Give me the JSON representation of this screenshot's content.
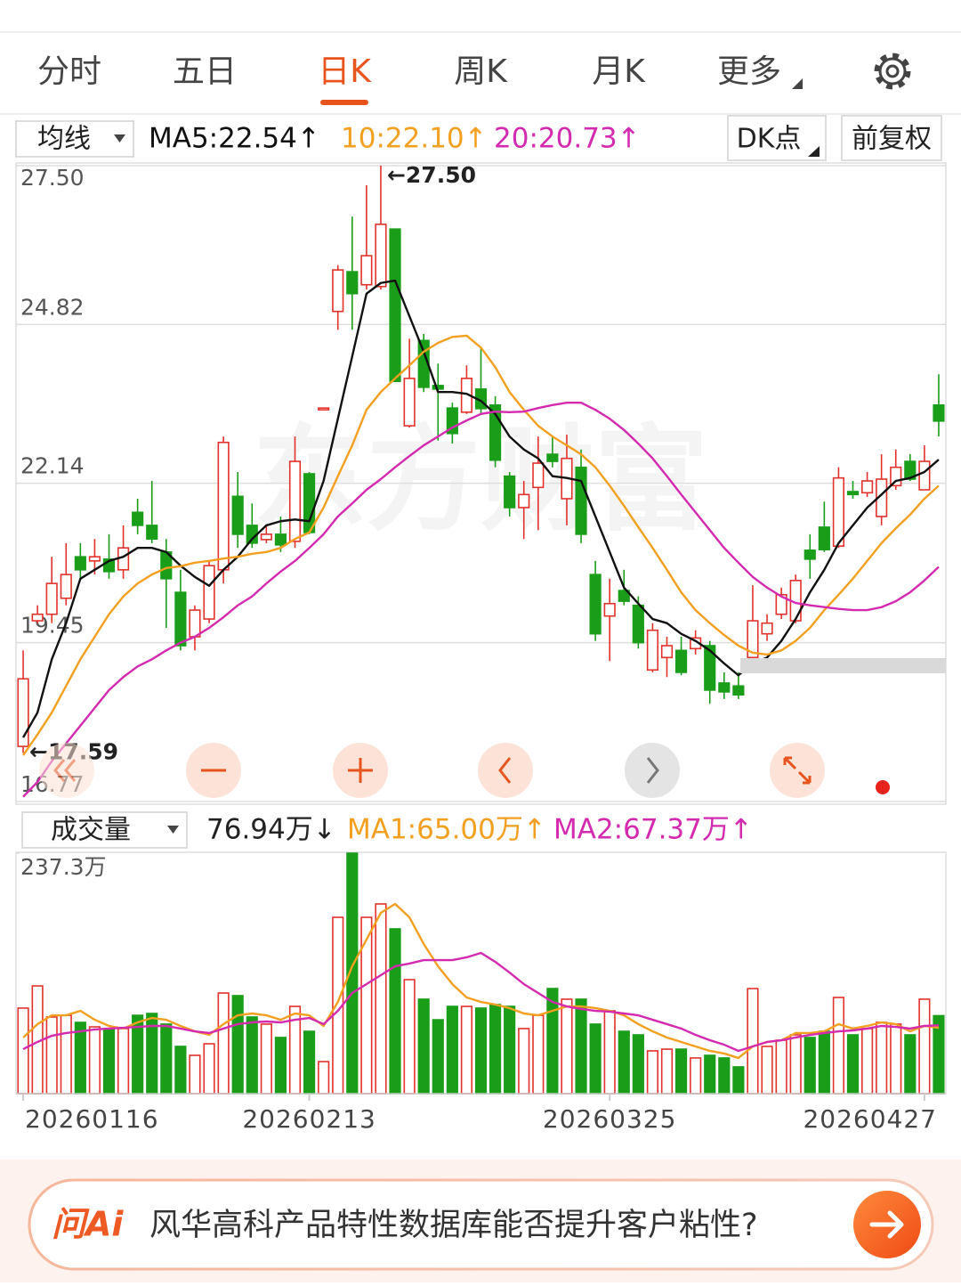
{
  "tabs": [
    "分时",
    "五日",
    "日K",
    "周K",
    "月K",
    "更多"
  ],
  "active_tab": 2,
  "buttons": [
    "DK点",
    "前复权"
  ],
  "watermark": "东方财富",
  "chart_data": [
    {
      "type": "candlestick",
      "menu": "均线",
      "ylim": [
        16.77,
        27.5
      ],
      "yticks": [
        16.77,
        19.45,
        22.14,
        24.82,
        {
          "value": 27.5,
          "label": "27.50"
        }
      ],
      "grid": true,
      "up_color": "#e2322b",
      "down_color": "#1a9e1a",
      "open": [
        17.7,
        19.82,
        19.93,
        20.2,
        20.9,
        20.83,
        20.86,
        20.68,
        21.65,
        21.43,
        20.98,
        20.3,
        19.55,
        19.85,
        20.68,
        21.92,
        21.43,
        21.19,
        21.28,
        21.16,
        22.3,
        23.38,
        25.04,
        25.71,
        25.49,
        25.46,
        26.43,
        23.11,
        24.55,
        23.79,
        23.41,
        23.34,
        23.73,
        23.46,
        22.26,
        21.73,
        22.07,
        22.63,
        21.88,
        22.41,
        20.6,
        19.9,
        20.33,
        20.08,
        18.99,
        19.2,
        19.32,
        19.35,
        19.4,
        18.77,
        18.72,
        19.2,
        19.6,
        19.93,
        19.82,
        21.01,
        21.4,
        21.08,
        22.0,
        21.98,
        21.58,
        22.1,
        22.51,
        22.03,
        23.46
      ],
      "high": [
        19.32,
        20.08,
        20.9,
        21.13,
        21.13,
        21.2,
        21.28,
        21.43,
        21.88,
        22.18,
        21.2,
        20.68,
        20.08,
        20.83,
        22.93,
        22.33,
        21.8,
        21.43,
        21.58,
        22.93,
        22.33,
        23.41,
        25.82,
        26.64,
        27.17,
        27.5,
        26.43,
        24.58,
        24.66,
        24.16,
        23.5,
        24.13,
        24.43,
        23.61,
        22.33,
        22.18,
        22.93,
        22.93,
        22.96,
        22.71,
        20.83,
        20.53,
        20.68,
        20.23,
        19.78,
        19.55,
        19.55,
        19.66,
        19.48,
        18.95,
        18.95,
        20.42,
        19.93,
        20.38,
        20.6,
        21.28,
        21.83,
        22.41,
        22.18,
        22.33,
        22.63,
        22.71,
        22.63,
        22.78,
        23.98
      ],
      "low": [
        17.59,
        19.78,
        19.78,
        20.08,
        20.53,
        20.6,
        20.53,
        20.53,
        21.28,
        21.13,
        19.7,
        19.32,
        19.32,
        19.78,
        20.45,
        21.05,
        21.05,
        21.13,
        20.98,
        21.05,
        21.28,
        23.38,
        24.73,
        24.73,
        25.41,
        25.41,
        23.86,
        23.08,
        23.68,
        22.86,
        22.81,
        23.31,
        23.31,
        22.41,
        21.58,
        21.2,
        21.35,
        22.41,
        21.43,
        21.13,
        19.48,
        19.14,
        20.08,
        19.35,
        18.95,
        18.87,
        18.9,
        19.25,
        18.42,
        18.5,
        18.5,
        19.14,
        19.48,
        19.85,
        19.78,
        20.53,
        20.98,
        21.05,
        21.88,
        21.91,
        21.43,
        22.03,
        22.18,
        22.03,
        22.93
      ],
      "close": [
        18.84,
        19.93,
        20.45,
        20.6,
        20.68,
        20.9,
        20.65,
        21.05,
        21.43,
        21.2,
        20.53,
        19.4,
        20.0,
        20.75,
        22.83,
        21.28,
        21.13,
        21.28,
        21.1,
        22.51,
        21.31,
        23.41,
        25.74,
        25.34,
        25.98,
        26.51,
        23.86,
        23.91,
        23.76,
        23.73,
        22.98,
        23.91,
        23.4,
        22.53,
        21.73,
        21.95,
        22.48,
        22.51,
        22.56,
        21.28,
        19.6,
        20.11,
        20.15,
        19.45,
        19.66,
        19.4,
        18.95,
        19.53,
        18.65,
        18.62,
        18.57,
        19.82,
        19.78,
        20.26,
        20.5,
        20.86,
        21.02,
        22.23,
        21.95,
        22.18,
        22.21,
        22.41,
        22.21,
        22.51,
        23.19
      ],
      "series": [
        {
          "name": "MA5:22.54↑",
          "color": "#111111",
          "values": [
            17.85,
            18.27,
            19.17,
            19.78,
            20.53,
            20.68,
            20.83,
            20.9,
            21.05,
            21.05,
            20.98,
            20.75,
            20.56,
            20.41,
            20.68,
            20.9,
            21.2,
            21.43,
            21.5,
            21.53,
            21.5,
            22.18,
            23.23,
            24.28,
            25.34,
            25.52,
            25.56,
            24.96,
            24.36,
            23.68,
            23.68,
            23.65,
            23.53,
            23.31,
            22.93,
            22.71,
            22.56,
            22.26,
            22.23,
            22.18,
            21.58,
            20.98,
            20.38,
            20.11,
            19.85,
            19.78,
            19.6,
            19.48,
            19.32,
            19.1,
            18.9,
            19.1,
            19.2,
            19.48,
            19.85,
            20.3,
            20.68,
            21.13,
            21.43,
            21.73,
            21.95,
            22.18,
            22.23,
            22.33,
            22.54
          ]
        },
        {
          "name": "10:22.10↑",
          "color": "#f3a021",
          "values": [
            17.55,
            17.9,
            18.27,
            18.72,
            19.17,
            19.55,
            19.93,
            20.23,
            20.45,
            20.6,
            20.71,
            20.74,
            20.8,
            20.83,
            20.87,
            20.9,
            20.95,
            20.98,
            21.05,
            21.2,
            21.31,
            21.73,
            22.26,
            22.78,
            23.38,
            23.68,
            23.91,
            24.13,
            24.36,
            24.51,
            24.61,
            24.63,
            24.43,
            24.1,
            23.68,
            23.38,
            23.11,
            22.93,
            22.78,
            22.63,
            22.41,
            22.1,
            21.76,
            21.4,
            21.05,
            20.68,
            20.3,
            20.0,
            19.78,
            19.58,
            19.4,
            19.28,
            19.25,
            19.32,
            19.48,
            19.7,
            20.0,
            20.26,
            20.53,
            20.83,
            21.13,
            21.38,
            21.61,
            21.88,
            22.1
          ]
        },
        {
          "name": "20:20.73↑",
          "color": "#d42ab0",
          "values": [
            16.85,
            17.1,
            17.45,
            17.75,
            18.05,
            18.35,
            18.65,
            18.87,
            19.05,
            19.17,
            19.32,
            19.45,
            19.55,
            19.7,
            19.88,
            20.08,
            20.23,
            20.45,
            20.65,
            20.83,
            21.05,
            21.28,
            21.58,
            21.8,
            22.03,
            22.21,
            22.41,
            22.6,
            22.78,
            22.93,
            23.08,
            23.2,
            23.31,
            23.35,
            23.34,
            23.35,
            23.41,
            23.46,
            23.5,
            23.5,
            23.38,
            23.23,
            23.04,
            22.81,
            22.56,
            22.26,
            21.95,
            21.65,
            21.35,
            21.05,
            20.8,
            20.56,
            20.38,
            20.23,
            20.12,
            20.08,
            20.05,
            20.02,
            20.0,
            20.0,
            20.05,
            20.15,
            20.3,
            20.5,
            20.73
          ]
        }
      ],
      "annotations": [
        {
          "label": "←27.50",
          "value": 27.5
        },
        {
          "label": "←17.59",
          "value": 17.59
        }
      ]
    },
    {
      "type": "bar",
      "menu": "成交量",
      "ylim": [
        0,
        237.3
      ],
      "yticks": [
        {
          "value": 237.3,
          "label": "237.3万"
        }
      ],
      "categories": [
        "20260116",
        null,
        null,
        null,
        null,
        null,
        null,
        null,
        null,
        null,
        null,
        null,
        null,
        null,
        null,
        null,
        null,
        null,
        null,
        null,
        "20260213",
        null,
        null,
        null,
        null,
        null,
        null,
        null,
        null,
        null,
        null,
        null,
        null,
        null,
        null,
        null,
        null,
        null,
        null,
        null,
        null,
        "20260325",
        null,
        null,
        null,
        null,
        null,
        null,
        null,
        null,
        null,
        null,
        null,
        null,
        null,
        null,
        null,
        null,
        null,
        null,
        null,
        null,
        null,
        "20260427",
        null
      ],
      "series": [
        {
          "name": "76.94万↓",
          "color": "#222222",
          "values": [
            84.4,
            106.3,
            75.6,
            77.3,
            70.3,
            65.9,
            64.2,
            64.2,
            77.3,
            79.1,
            68.6,
            46.6,
            37.8,
            49.2,
            99.3,
            96.7,
            75.6,
            68.6,
            55.4,
            86.1,
            61.5,
            31.6,
            174.0,
            237.3,
            174.0,
            187.2,
            162.6,
            112.5,
            93.2,
            72.9,
            86.1,
            86.1,
            84.4,
            87.9,
            86.1,
            64.2,
            77.3,
            103.7,
            93.2,
            93.2,
            68.6,
            81.7,
            61.5,
            58.0,
            42.2,
            43.9,
            43.9,
            35.2,
            37.8,
            35.2,
            26.4,
            103.7,
            46.6,
            52.7,
            58.0,
            55.4,
            61.5,
            94.9,
            58.0,
            64.2,
            70.3,
            68.6,
            58.0,
            93.2,
            76.94
          ]
        },
        {
          "name": "MA1:65.00万↑",
          "color": "#f3a021",
          "values": [
            55.4,
            68.6,
            77.3,
            77.3,
            81.7,
            72.9,
            66.8,
            64.2,
            70.3,
            74.7,
            72.9,
            66.8,
            61.5,
            58.0,
            68.6,
            77.3,
            79.1,
            77.3,
            72.9,
            79.1,
            77.3,
            66.8,
            90.5,
            125.7,
            152.0,
            178.4,
            187.2,
            174.0,
            147.7,
            125.7,
            108.1,
            94.9,
            90.5,
            87.9,
            84.4,
            79.1,
            77.3,
            81.7,
            86.1,
            86.1,
            84.4,
            81.7,
            77.3,
            68.6,
            61.5,
            55.4,
            51.0,
            46.6,
            42.2,
            39.6,
            35.2,
            46.6,
            51.0,
            52.7,
            59.8,
            59.8,
            61.5,
            68.6,
            64.2,
            66.8,
            70.3,
            68.6,
            61.5,
            66.8,
            65.0
          ]
        },
        {
          "name": "MA2:67.37万↑",
          "color": "#d42ab0",
          "values": [
            43.9,
            51.0,
            57.1,
            59.8,
            61.5,
            63.3,
            64.2,
            65.0,
            65.9,
            66.8,
            66.8,
            64.2,
            61.5,
            59.8,
            64.2,
            68.6,
            70.3,
            71.2,
            70.3,
            72.9,
            74.7,
            68.6,
            81.7,
            99.3,
            108.1,
            116.9,
            125.7,
            128.4,
            131.8,
            131.8,
            131.8,
            134.5,
            138.9,
            130.1,
            119.5,
            108.1,
            99.3,
            90.5,
            86.1,
            83.5,
            81.7,
            80.9,
            79.1,
            77.3,
            72.9,
            68.6,
            64.2,
            58.0,
            52.7,
            48.3,
            42.2,
            46.6,
            51.0,
            52.7,
            55.4,
            58.0,
            59.8,
            61.5,
            62.4,
            64.2,
            66.8,
            65.9,
            64.2,
            66.8,
            67.37
          ]
        }
      ]
    }
  ],
  "footer": {
    "brand": "问Ai",
    "question": "风华高科产品特性数据库能否提升客户粘性?"
  }
}
